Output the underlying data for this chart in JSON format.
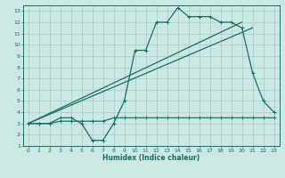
{
  "xlabel": "Humidex (Indice chaleur)",
  "bg_color": "#cce8e4",
  "grid_color": "#aed0cc",
  "line_color": "#1a6e62",
  "xlim": [
    -0.5,
    23.5
  ],
  "ylim": [
    1,
    13.5
  ],
  "xticks": [
    0,
    1,
    2,
    3,
    4,
    5,
    6,
    7,
    8,
    9,
    10,
    11,
    12,
    13,
    14,
    15,
    16,
    17,
    18,
    19,
    20,
    21,
    22,
    23
  ],
  "yticks": [
    1,
    2,
    3,
    4,
    5,
    6,
    7,
    8,
    9,
    10,
    11,
    12,
    13
  ],
  "series1_x": [
    0,
    1,
    2,
    3,
    4,
    5,
    6,
    7,
    8,
    9,
    10,
    11,
    12,
    13,
    14,
    15,
    16,
    17,
    18,
    19,
    20,
    21,
    22,
    23
  ],
  "series1_y": [
    3,
    3,
    3,
    3.5,
    3.5,
    3,
    1.5,
    1.5,
    3,
    5,
    9.5,
    9.5,
    12,
    12,
    13.3,
    12.5,
    12.5,
    12.5,
    12,
    12,
    11.5,
    7.5,
    5,
    4
  ],
  "series2_x": [
    0,
    1,
    2,
    3,
    4,
    5,
    6,
    7,
    8,
    9,
    10,
    11,
    12,
    13,
    14,
    15,
    16,
    17,
    18,
    19,
    20,
    21,
    22,
    23
  ],
  "series2_y": [
    3,
    3,
    3,
    3.2,
    3.2,
    3.2,
    3.2,
    3.2,
    3.5,
    3.5,
    3.5,
    3.5,
    3.5,
    3.5,
    3.5,
    3.5,
    3.5,
    3.5,
    3.5,
    3.5,
    3.5,
    3.5,
    3.5,
    3.5
  ],
  "line1_x": [
    0,
    20
  ],
  "line1_y": [
    3,
    12
  ],
  "line2_x": [
    0,
    21
  ],
  "line2_y": [
    3,
    11.5
  ]
}
